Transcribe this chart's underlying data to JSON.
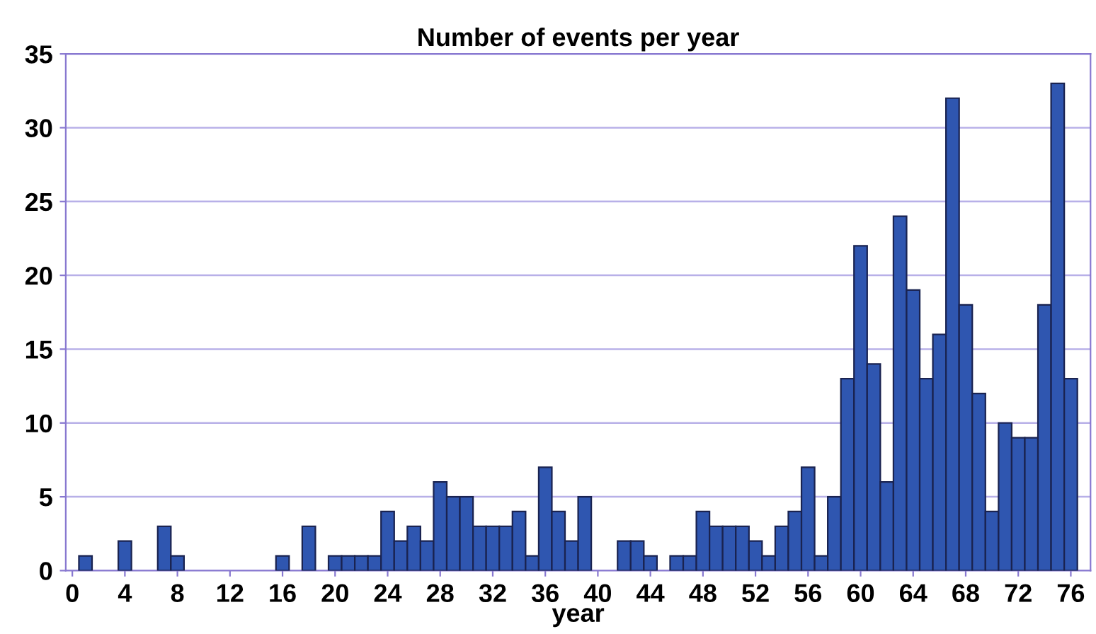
{
  "chart_data": {
    "type": "histogram",
    "title": "Number of events per year",
    "xlabel": "year",
    "bins": [
      -0.5,
      0.5,
      1.5,
      2.5,
      3.5,
      4.5,
      5.5,
      6.5,
      7.5,
      8.5,
      9.5,
      10.5,
      11.5,
      12.5,
      13.5,
      14.5,
      15.5,
      16.5,
      17.5,
      18.5,
      19.5,
      20.5,
      21.5,
      22.5,
      23.5,
      24.5,
      25.5,
      26.5,
      27.5,
      28.5,
      29.5,
      30.5,
      31.5,
      32.5,
      33.5,
      34.5,
      35.5,
      36.5,
      37.5,
      38.5,
      39.5,
      40.5,
      41.5,
      42.5,
      43.5,
      44.5,
      45.5,
      46.5,
      47.5,
      48.5,
      49.5,
      50.5,
      51.5,
      52.5,
      53.5,
      54.5,
      55.5,
      56.5,
      57.5,
      58.5,
      59.5,
      60.5,
      61.5,
      62.5,
      63.5,
      64.5,
      65.5,
      66.5,
      67.5,
      68.5,
      69.5,
      70.5,
      71.5,
      72.5,
      73.5,
      74.5,
      75.5,
      76.5
    ],
    "values": [
      0,
      1,
      0,
      0,
      2,
      0,
      0,
      3,
      1,
      0,
      0,
      0,
      0,
      0,
      0,
      0,
      1,
      0,
      3,
      0,
      1,
      1,
      1,
      1,
      4,
      2,
      3,
      2,
      6,
      5,
      5,
      3,
      3,
      3,
      4,
      1,
      7,
      4,
      2,
      5,
      0,
      0,
      2,
      2,
      1,
      0,
      1,
      1,
      4,
      3,
      3,
      3,
      2,
      1,
      3,
      4,
      7,
      1,
      5,
      13,
      22,
      14,
      6,
      24,
      19,
      13,
      16,
      32,
      18,
      12,
      4,
      10,
      9,
      9,
      18,
      33,
      13
    ],
    "color": "#2f56b0",
    "xlim": [
      -0.5,
      77.5
    ],
    "xticks": [
      0,
      4,
      8,
      12,
      16,
      20,
      24,
      28,
      32,
      36,
      40,
      44,
      48,
      52,
      56,
      60,
      64,
      68,
      72,
      76
    ],
    "ylim": [
      0,
      35
    ],
    "yticks": [
      0,
      5,
      10,
      15,
      20,
      25,
      30,
      35
    ],
    "grid": "y"
  }
}
